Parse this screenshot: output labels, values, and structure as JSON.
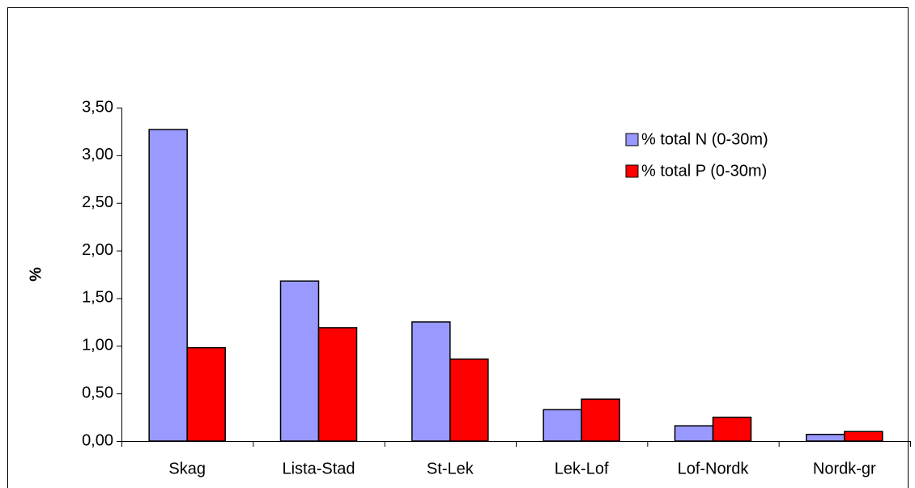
{
  "chart_data": {
    "type": "bar",
    "categories": [
      "Skag",
      "Lista-Stad",
      "St-Lek",
      "Lek-Lof",
      "Lof-Nordk",
      "Nordk-gr"
    ],
    "series": [
      {
        "name": "% total N (0-30m)",
        "color": "#9999ff",
        "values": [
          3.27,
          1.68,
          1.25,
          0.33,
          0.16,
          0.07
        ]
      },
      {
        "name": "% total P (0-30m)",
        "color": "#ff0000",
        "values": [
          0.98,
          1.19,
          0.86,
          0.44,
          0.25,
          0.1
        ]
      }
    ],
    "y_label": "%",
    "ylim": [
      0,
      3.5
    ],
    "yticks": [
      {
        "value": 0,
        "label": "0,00"
      },
      {
        "value": 0.5,
        "label": "0,50"
      },
      {
        "value": 1,
        "label": "1,00"
      },
      {
        "value": 1.5,
        "label": "1,50"
      },
      {
        "value": 2,
        "label": "2,00"
      },
      {
        "value": 2.5,
        "label": "2,50"
      },
      {
        "value": 3,
        "label": "3,00"
      },
      {
        "value": 3.5,
        "label": "3,50"
      }
    ],
    "legend": "upper right"
  }
}
